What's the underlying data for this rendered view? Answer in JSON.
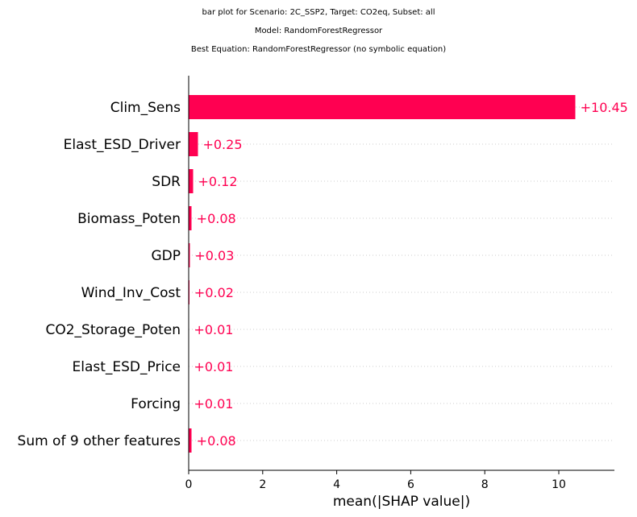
{
  "chart_data": {
    "type": "bar",
    "orientation": "horizontal",
    "title_lines": [
      "bar plot for Scenario: 2C_SSP2, Target: CO2eq, Subset: all",
      "Model: RandomForestRegressor",
      "Best Equation: RandomForestRegressor (no symbolic equation)"
    ],
    "categories": [
      "Clim_Sens",
      "Elast_ESD_Driver",
      "SDR",
      "Biomass_Poten",
      "GDP",
      "Wind_Inv_Cost",
      "CO2_Storage_Poten",
      "Elast_ESD_Price",
      "Forcing",
      "Sum of 9 other features"
    ],
    "values": [
      10.45,
      0.25,
      0.12,
      0.08,
      0.03,
      0.02,
      0.01,
      0.01,
      0.01,
      0.08
    ],
    "value_labels": [
      "+10.45",
      "+0.25",
      "+0.12",
      "+0.08",
      "+0.03",
      "+0.02",
      "+0.01",
      "+0.01",
      "+0.01",
      "+0.08"
    ],
    "xlabel": "mean(|SHAP value|)",
    "ylabel": "",
    "xlim": [
      0,
      11.5
    ],
    "xticks": [
      0,
      2,
      4,
      6,
      8,
      10
    ],
    "bar_color": "#ff0051",
    "grid": "dotted horizontal guide lines"
  }
}
